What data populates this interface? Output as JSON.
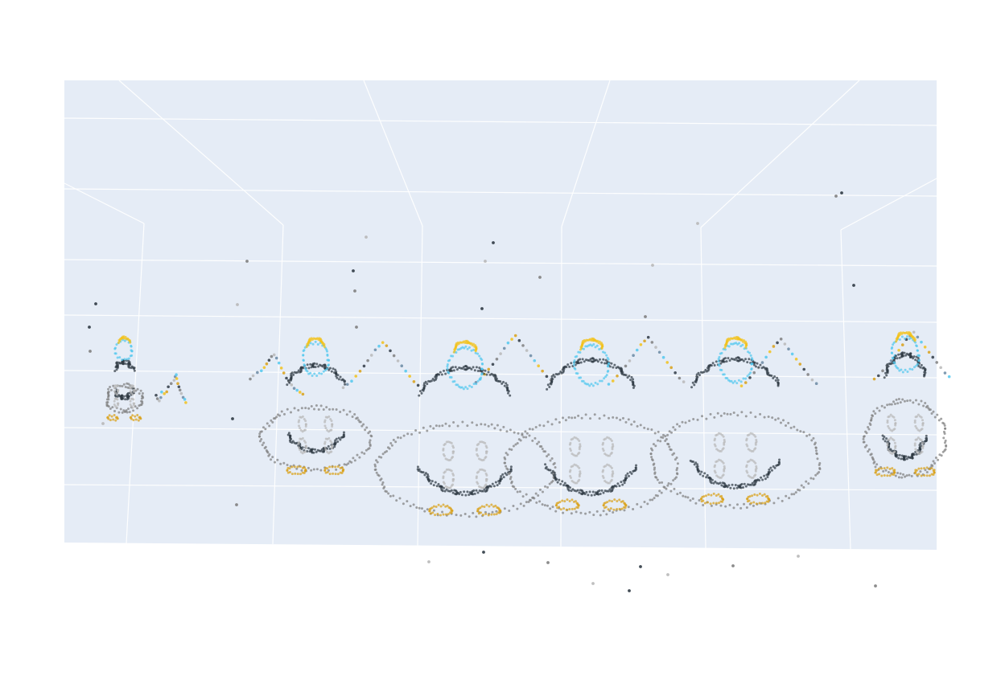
{
  "chart_data": {
    "type": "scatter",
    "dimension": "3d",
    "title": "",
    "grid": true,
    "legend": "none",
    "colors": {
      "scene_background": "#e5ecf6",
      "grid_line": "#ffffff",
      "dark": "#2f3a44",
      "gray": "#7f7f7f",
      "light_gray": "#b8b8b8",
      "cyan": "#52c8ef",
      "blue_gray": "#6b8aa3",
      "yellow": "#f2c21b",
      "gold": "#d9a117"
    },
    "series": [
      {
        "values": [
          {
            "x": 0.6,
            "y": 0.0,
            "z": 0.55
          },
          {
            "x": 0.61,
            "y": 0.0,
            "z": 0.53
          },
          {
            "x": 0.62,
            "y": 0.02,
            "z": 0.52
          },
          {
            "x": 0.63,
            "y": 0.03,
            "z": 0.54
          },
          {
            "x": 0.64,
            "y": 0.01,
            "z": 0.57
          },
          {
            "x": 0.66,
            "y": 0.01,
            "z": 0.56
          },
          {
            "x": 0.68,
            "y": 0.0,
            "z": 0.57
          },
          {
            "x": 0.69,
            "y": 0.01,
            "z": 0.6
          },
          {
            "x": 0.71,
            "y": 0.02,
            "z": 0.62
          },
          {
            "x": 0.73,
            "y": 0.03,
            "z": 0.64
          },
          {
            "x": 0.74,
            "y": 0.02,
            "z": 0.66
          },
          {
            "x": 0.75,
            "y": 0.01,
            "z": 0.67
          },
          {
            "x": 0.75,
            "y": 0.03,
            "z": 0.65
          },
          {
            "x": 0.76,
            "y": 0.02,
            "z": 0.62
          },
          {
            "x": 0.77,
            "y": 0.01,
            "z": 0.6
          },
          {
            "x": 0.78,
            "y": 0.0,
            "z": 0.58
          },
          {
            "x": 0.79,
            "y": 0.0,
            "z": 0.56
          },
          {
            "x": 0.8,
            "y": 0.02,
            "z": 0.54
          },
          {
            "x": 0.81,
            "y": 0.03,
            "z": 0.53
          },
          {
            "x": 0.82,
            "y": 0.02,
            "z": 0.51
          }
        ]
      },
      {
        "values": [
          {
            "x": 1.3,
            "y": 0.05,
            "z": 0.65
          },
          {
            "x": 1.32,
            "y": 0.06,
            "z": 0.67
          },
          {
            "x": 1.35,
            "y": 0.07,
            "z": 0.69
          },
          {
            "x": 1.38,
            "y": 0.07,
            "z": 0.7
          },
          {
            "x": 1.4,
            "y": 0.08,
            "z": 0.72
          },
          {
            "x": 1.42,
            "y": 0.07,
            "z": 0.74
          },
          {
            "x": 1.44,
            "y": 0.06,
            "z": 0.76
          },
          {
            "x": 1.46,
            "y": 0.05,
            "z": 0.78
          },
          {
            "x": 1.48,
            "y": 0.05,
            "z": 0.79
          },
          {
            "x": 1.5,
            "y": 0.04,
            "z": 0.77
          },
          {
            "x": 1.52,
            "y": 0.03,
            "z": 0.74
          },
          {
            "x": 1.54,
            "y": 0.02,
            "z": 0.71
          },
          {
            "x": 1.56,
            "y": 0.01,
            "z": 0.68
          },
          {
            "x": 1.58,
            "y": 0.01,
            "z": 0.65
          },
          {
            "x": 1.6,
            "y": 0.0,
            "z": 0.63
          },
          {
            "x": 1.62,
            "y": 0.0,
            "z": 0.61
          },
          {
            "x": 1.64,
            "y": 0.0,
            "z": 0.59
          },
          {
            "x": 1.66,
            "y": 0.01,
            "z": 0.58
          },
          {
            "x": 1.68,
            "y": 0.02,
            "z": 0.57
          },
          {
            "x": 1.7,
            "y": 0.03,
            "z": 0.56
          }
        ]
      },
      {
        "values": [
          {
            "x": 2.0,
            "y": 0.05,
            "z": 0.6
          },
          {
            "x": 2.03,
            "y": 0.06,
            "z": 0.62
          },
          {
            "x": 2.06,
            "y": 0.07,
            "z": 0.64
          },
          {
            "x": 2.09,
            "y": 0.08,
            "z": 0.67
          },
          {
            "x": 2.12,
            "y": 0.09,
            "z": 0.7
          },
          {
            "x": 2.15,
            "y": 0.09,
            "z": 0.73
          },
          {
            "x": 2.18,
            "y": 0.08,
            "z": 0.76
          },
          {
            "x": 2.21,
            "y": 0.07,
            "z": 0.79
          },
          {
            "x": 2.24,
            "y": 0.06,
            "z": 0.82
          },
          {
            "x": 2.27,
            "y": 0.05,
            "z": 0.84
          },
          {
            "x": 2.3,
            "y": 0.04,
            "z": 0.86
          },
          {
            "x": 2.33,
            "y": 0.03,
            "z": 0.84
          },
          {
            "x": 2.36,
            "y": 0.02,
            "z": 0.81
          },
          {
            "x": 2.39,
            "y": 0.01,
            "z": 0.78
          },
          {
            "x": 2.42,
            "y": 0.01,
            "z": 0.75
          },
          {
            "x": 2.45,
            "y": 0.0,
            "z": 0.72
          },
          {
            "x": 2.48,
            "y": 0.0,
            "z": 0.69
          },
          {
            "x": 2.51,
            "y": 0.0,
            "z": 0.66
          },
          {
            "x": 2.54,
            "y": 0.01,
            "z": 0.63
          },
          {
            "x": 2.57,
            "y": 0.02,
            "z": 0.61
          }
        ]
      },
      {
        "values": [
          {
            "x": 3.0,
            "y": 0.05,
            "z": 0.63
          },
          {
            "x": 3.03,
            "y": 0.06,
            "z": 0.65
          },
          {
            "x": 3.06,
            "y": 0.07,
            "z": 0.68
          },
          {
            "x": 3.09,
            "y": 0.08,
            "z": 0.71
          },
          {
            "x": 3.12,
            "y": 0.09,
            "z": 0.74
          },
          {
            "x": 3.15,
            "y": 0.09,
            "z": 0.77
          },
          {
            "x": 3.18,
            "y": 0.08,
            "z": 0.8
          },
          {
            "x": 3.21,
            "y": 0.07,
            "z": 0.83
          },
          {
            "x": 3.24,
            "y": 0.06,
            "z": 0.86
          },
          {
            "x": 3.27,
            "y": 0.05,
            "z": 0.88
          },
          {
            "x": 3.3,
            "y": 0.04,
            "z": 0.9
          },
          {
            "x": 3.33,
            "y": 0.03,
            "z": 0.87
          },
          {
            "x": 3.36,
            "y": 0.02,
            "z": 0.84
          },
          {
            "x": 3.39,
            "y": 0.01,
            "z": 0.81
          },
          {
            "x": 3.42,
            "y": 0.01,
            "z": 0.78
          },
          {
            "x": 3.45,
            "y": 0.0,
            "z": 0.75
          },
          {
            "x": 3.48,
            "y": 0.0,
            "z": 0.72
          },
          {
            "x": 3.51,
            "y": 0.0,
            "z": 0.69
          },
          {
            "x": 3.54,
            "y": 0.01,
            "z": 0.66
          },
          {
            "x": 3.57,
            "y": 0.02,
            "z": 0.64
          }
        ]
      },
      {
        "values": [
          {
            "x": 4.0,
            "y": 0.05,
            "z": 0.62
          },
          {
            "x": 4.03,
            "y": 0.06,
            "z": 0.64
          },
          {
            "x": 4.06,
            "y": 0.07,
            "z": 0.67
          },
          {
            "x": 4.09,
            "y": 0.08,
            "z": 0.7
          },
          {
            "x": 4.12,
            "y": 0.09,
            "z": 0.73
          },
          {
            "x": 4.15,
            "y": 0.09,
            "z": 0.76
          },
          {
            "x": 4.18,
            "y": 0.08,
            "z": 0.79
          },
          {
            "x": 4.21,
            "y": 0.07,
            "z": 0.82
          },
          {
            "x": 4.24,
            "y": 0.06,
            "z": 0.85
          },
          {
            "x": 4.27,
            "y": 0.05,
            "z": 0.87
          },
          {
            "x": 4.3,
            "y": 0.04,
            "z": 0.89
          },
          {
            "x": 4.33,
            "y": 0.03,
            "z": 0.86
          },
          {
            "x": 4.36,
            "y": 0.02,
            "z": 0.83
          },
          {
            "x": 4.39,
            "y": 0.01,
            "z": 0.8
          },
          {
            "x": 4.42,
            "y": 0.01,
            "z": 0.77
          },
          {
            "x": 4.45,
            "y": 0.0,
            "z": 0.74
          },
          {
            "x": 4.48,
            "y": 0.0,
            "z": 0.71
          },
          {
            "x": 4.51,
            "y": 0.0,
            "z": 0.68
          },
          {
            "x": 4.54,
            "y": 0.01,
            "z": 0.65
          },
          {
            "x": 4.57,
            "y": 0.02,
            "z": 0.63
          }
        ]
      },
      {
        "values": [
          {
            "x": 5.0,
            "y": 0.05,
            "z": 0.61
          },
          {
            "x": 5.03,
            "y": 0.06,
            "z": 0.63
          },
          {
            "x": 5.06,
            "y": 0.07,
            "z": 0.66
          },
          {
            "x": 5.09,
            "y": 0.08,
            "z": 0.69
          },
          {
            "x": 5.12,
            "y": 0.09,
            "z": 0.72
          },
          {
            "x": 5.15,
            "y": 0.09,
            "z": 0.75
          },
          {
            "x": 5.18,
            "y": 0.08,
            "z": 0.78
          },
          {
            "x": 5.21,
            "y": 0.07,
            "z": 0.81
          },
          {
            "x": 5.24,
            "y": 0.06,
            "z": 0.84
          },
          {
            "x": 5.27,
            "y": 0.05,
            "z": 0.86
          },
          {
            "x": 5.3,
            "y": 0.04,
            "z": 0.88
          },
          {
            "x": 5.33,
            "y": 0.03,
            "z": 0.85
          },
          {
            "x": 5.36,
            "y": 0.02,
            "z": 0.82
          },
          {
            "x": 5.39,
            "y": 0.01,
            "z": 0.79
          },
          {
            "x": 5.42,
            "y": 0.01,
            "z": 0.76
          },
          {
            "x": 5.45,
            "y": 0.0,
            "z": 0.73
          },
          {
            "x": 5.48,
            "y": 0.0,
            "z": 0.7
          },
          {
            "x": 5.51,
            "y": 0.0,
            "z": 0.67
          },
          {
            "x": 5.54,
            "y": 0.01,
            "z": 0.64
          },
          {
            "x": 5.57,
            "y": 0.02,
            "z": 0.62
          }
        ]
      },
      {
        "values": [
          {
            "x": 6.0,
            "y": 0.05,
            "z": 0.65
          },
          {
            "x": 6.03,
            "y": 0.06,
            "z": 0.67
          },
          {
            "x": 6.06,
            "y": 0.07,
            "z": 0.7
          },
          {
            "x": 6.09,
            "y": 0.08,
            "z": 0.73
          },
          {
            "x": 6.12,
            "y": 0.09,
            "z": 0.76
          },
          {
            "x": 6.15,
            "y": 0.09,
            "z": 0.79
          },
          {
            "x": 6.18,
            "y": 0.08,
            "z": 0.82
          },
          {
            "x": 6.21,
            "y": 0.07,
            "z": 0.85
          },
          {
            "x": 6.24,
            "y": 0.06,
            "z": 0.88
          },
          {
            "x": 6.27,
            "y": 0.05,
            "z": 0.9
          },
          {
            "x": 6.3,
            "y": 0.04,
            "z": 0.92
          },
          {
            "x": 6.33,
            "y": 0.03,
            "z": 0.89
          },
          {
            "x": 6.36,
            "y": 0.02,
            "z": 0.86
          },
          {
            "x": 6.39,
            "y": 0.01,
            "z": 0.83
          },
          {
            "x": 6.42,
            "y": 0.01,
            "z": 0.8
          },
          {
            "x": 6.45,
            "y": 0.0,
            "z": 0.77
          },
          {
            "x": 6.48,
            "y": 0.0,
            "z": 0.74
          },
          {
            "x": 6.51,
            "y": 0.0,
            "z": 0.71
          },
          {
            "x": 6.54,
            "y": 0.01,
            "z": 0.68
          },
          {
            "x": 6.57,
            "y": 0.02,
            "z": 0.66
          }
        ]
      }
    ]
  }
}
